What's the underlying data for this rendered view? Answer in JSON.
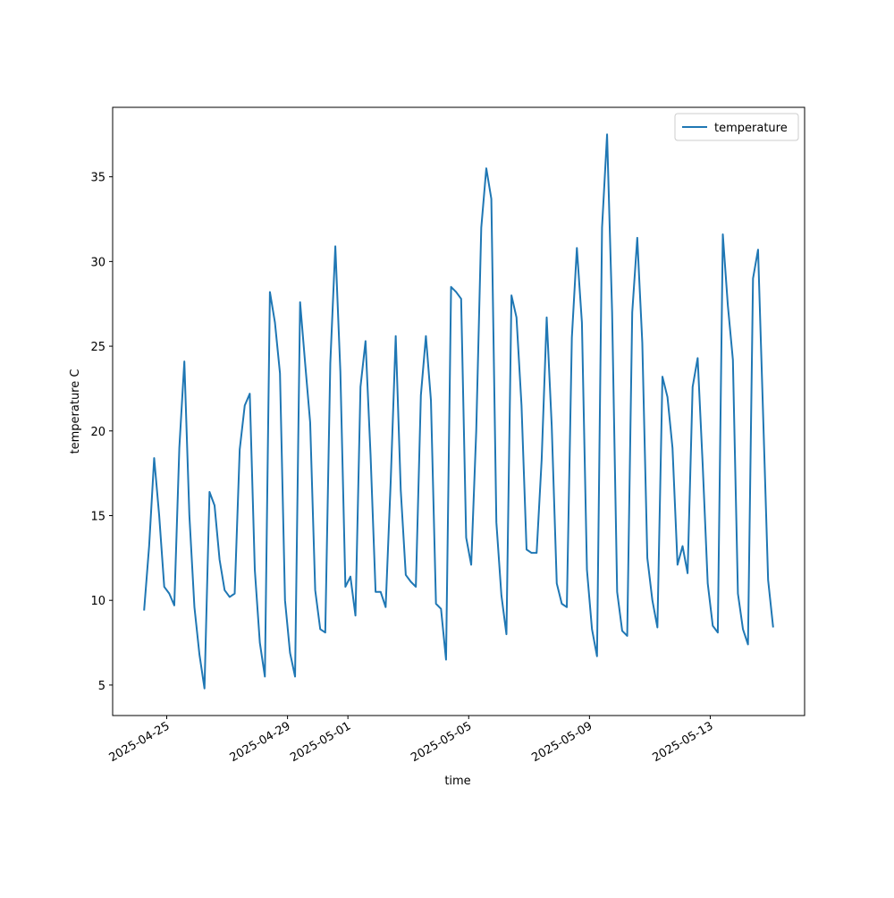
{
  "chart_data": {
    "type": "line",
    "title": null,
    "xlabel": "time",
    "ylabel": "temperature C",
    "x": [
      "2025-04-24T06:00",
      "2025-04-24T10:00",
      "2025-04-24T14:00",
      "2025-04-24T18:00",
      "2025-04-24T22:00",
      "2025-04-25T02:00",
      "2025-04-25T06:00",
      "2025-04-25T10:00",
      "2025-04-25T14:00",
      "2025-04-25T18:00",
      "2025-04-25T22:00",
      "2025-04-26T02:00",
      "2025-04-26T06:00",
      "2025-04-26T10:00",
      "2025-04-26T14:00",
      "2025-04-26T18:00",
      "2025-04-26T22:00",
      "2025-04-27T02:00",
      "2025-04-27T06:00",
      "2025-04-27T10:00",
      "2025-04-27T14:00",
      "2025-04-27T18:00",
      "2025-04-27T22:00",
      "2025-04-28T02:00",
      "2025-04-28T06:00",
      "2025-04-28T10:00",
      "2025-04-28T14:00",
      "2025-04-28T18:00",
      "2025-04-28T22:00",
      "2025-04-29T02:00",
      "2025-04-29T06:00",
      "2025-04-29T10:00",
      "2025-04-29T14:00",
      "2025-04-29T18:00",
      "2025-04-29T22:00",
      "2025-04-30T02:00",
      "2025-04-30T06:00",
      "2025-04-30T10:00",
      "2025-04-30T14:00",
      "2025-04-30T18:00",
      "2025-04-30T22:00",
      "2025-05-01T02:00",
      "2025-05-01T06:00",
      "2025-05-01T10:00",
      "2025-05-01T14:00",
      "2025-05-01T18:00",
      "2025-05-01T22:00",
      "2025-05-02T02:00",
      "2025-05-02T06:00",
      "2025-05-02T10:00",
      "2025-05-02T14:00",
      "2025-05-02T18:00",
      "2025-05-02T22:00",
      "2025-05-03T02:00",
      "2025-05-03T06:00",
      "2025-05-03T10:00",
      "2025-05-03T14:00",
      "2025-05-03T18:00",
      "2025-05-03T22:00",
      "2025-05-04T02:00",
      "2025-05-04T06:00",
      "2025-05-04T10:00",
      "2025-05-04T14:00",
      "2025-05-04T18:00",
      "2025-05-04T22:00",
      "2025-05-05T02:00",
      "2025-05-05T06:00",
      "2025-05-05T10:00",
      "2025-05-05T14:00",
      "2025-05-05T18:00",
      "2025-05-05T22:00",
      "2025-05-06T02:00",
      "2025-05-06T06:00",
      "2025-05-06T10:00",
      "2025-05-06T14:00",
      "2025-05-06T18:00",
      "2025-05-06T22:00",
      "2025-05-07T02:00",
      "2025-05-07T06:00",
      "2025-05-07T10:00",
      "2025-05-07T14:00",
      "2025-05-07T18:00",
      "2025-05-07T22:00",
      "2025-05-08T02:00",
      "2025-05-08T06:00",
      "2025-05-08T10:00",
      "2025-05-08T14:00",
      "2025-05-08T18:00",
      "2025-05-08T22:00",
      "2025-05-09T02:00",
      "2025-05-09T06:00",
      "2025-05-09T10:00",
      "2025-05-09T14:00",
      "2025-05-09T18:00",
      "2025-05-09T22:00",
      "2025-05-10T02:00",
      "2025-05-10T06:00",
      "2025-05-10T10:00",
      "2025-05-10T14:00",
      "2025-05-10T18:00",
      "2025-05-10T22:00",
      "2025-05-11T02:00",
      "2025-05-11T06:00",
      "2025-05-11T10:00",
      "2025-05-11T14:00",
      "2025-05-11T18:00",
      "2025-05-11T22:00",
      "2025-05-12T02:00",
      "2025-05-12T06:00",
      "2025-05-12T10:00",
      "2025-05-12T14:00",
      "2025-05-12T18:00",
      "2025-05-12T22:00",
      "2025-05-13T02:00",
      "2025-05-13T06:00",
      "2025-05-13T10:00",
      "2025-05-13T14:00",
      "2025-05-13T18:00",
      "2025-05-13T22:00",
      "2025-05-14T02:00",
      "2025-05-14T06:00",
      "2025-05-14T10:00",
      "2025-05-14T14:00",
      "2025-05-14T18:00",
      "2025-05-14T22:00",
      "2025-05-15T02:00"
    ],
    "series": [
      {
        "name": "temperature",
        "color": "#1f77b4",
        "values": [
          9.4,
          13.2,
          18.4,
          15,
          10.8,
          10.4,
          9.7,
          19,
          24.1,
          15,
          9.6,
          6.8,
          4.8,
          16.4,
          15.6,
          12.4,
          10.6,
          10.2,
          10.4,
          18.9,
          21.5,
          22.2,
          11.8,
          7.5,
          5.5,
          28.2,
          26.4,
          23.4,
          10,
          6.9,
          5.5,
          27.6,
          24,
          20.5,
          10.6,
          8.3,
          8.1,
          24,
          30.9,
          23.5,
          10.8,
          11.4,
          9.1,
          22.6,
          25.3,
          18.6,
          10.5,
          10.5,
          9.6,
          17,
          25.6,
          16.5,
          11.5,
          11.1,
          10.8,
          22.1,
          25.6,
          21.8,
          9.8,
          9.5,
          6.5,
          28.5,
          28.2,
          27.8,
          13.7,
          12.1,
          20,
          32,
          35.5,
          33.7,
          14.6,
          10.3,
          8,
          28,
          26.7,
          21.5,
          13,
          12.8,
          12.8,
          18.3,
          26.7,
          20.3,
          11,
          9.8,
          9.6,
          25.5,
          30.8,
          26.4,
          11.8,
          8.3,
          6.7,
          32,
          37.5,
          27,
          10.5,
          8.2,
          7.9,
          27,
          31.4,
          25.2,
          12.5,
          10,
          8.4,
          23.2,
          22,
          19,
          12.1,
          13.2,
          11.6,
          22.6,
          24.3,
          18,
          11,
          8.5,
          8.1,
          31.6,
          27.4,
          24.2,
          10.4,
          8.3,
          7.4,
          29,
          30.7,
          21,
          11.2,
          8.4
        ]
      }
    ],
    "xlim": [
      "2025-04-23T05:00",
      "2025-05-16T03:00"
    ],
    "xticks": [
      "2025-04-25",
      "2025-04-29",
      "2025-05-01",
      "2025-05-05",
      "2025-05-09",
      "2025-05-13"
    ],
    "ylim": [
      3.2,
      39.1
    ],
    "yticks": [
      5,
      10,
      15,
      20,
      25,
      30,
      35
    ],
    "grid": false,
    "legend": "upper right"
  }
}
